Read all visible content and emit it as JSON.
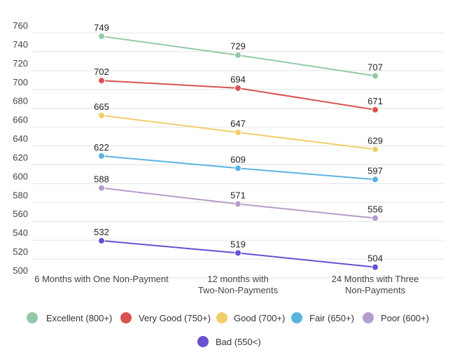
{
  "chart_data": {
    "type": "line",
    "title": "",
    "xlabel": "",
    "ylabel": "",
    "ylim": [
      500,
      760
    ],
    "yticks": [
      500,
      520,
      540,
      560,
      580,
      600,
      620,
      640,
      660,
      680,
      700,
      720,
      740,
      760
    ],
    "grid": true,
    "legend_position": "bottom",
    "categories": [
      [
        "6 Months with One Non-Payment"
      ],
      [
        "12 months with",
        "Two-Non-Payments"
      ],
      [
        "24 Months with Three",
        "Non-Payments"
      ]
    ],
    "series": [
      {
        "name": "Excellent (800+)",
        "color": "#93c9a5",
        "values": [
          749,
          729,
          707
        ]
      },
      {
        "name": "Very Good (750+)",
        "color": "#d9534f",
        "values": [
          702,
          694,
          671
        ]
      },
      {
        "name": "Good (700+)",
        "color": "#f0cf6b",
        "values": [
          665,
          647,
          629
        ]
      },
      {
        "name": "Fair (650+)",
        "color": "#5ab4e0",
        "values": [
          622,
          609,
          597
        ]
      },
      {
        "name": "Poor (600+)",
        "color": "#b59ccc",
        "values": [
          588,
          571,
          556
        ]
      },
      {
        "name": "Bad (550<)",
        "color": "#6a4fd1",
        "values": [
          532,
          519,
          504
        ]
      }
    ]
  }
}
